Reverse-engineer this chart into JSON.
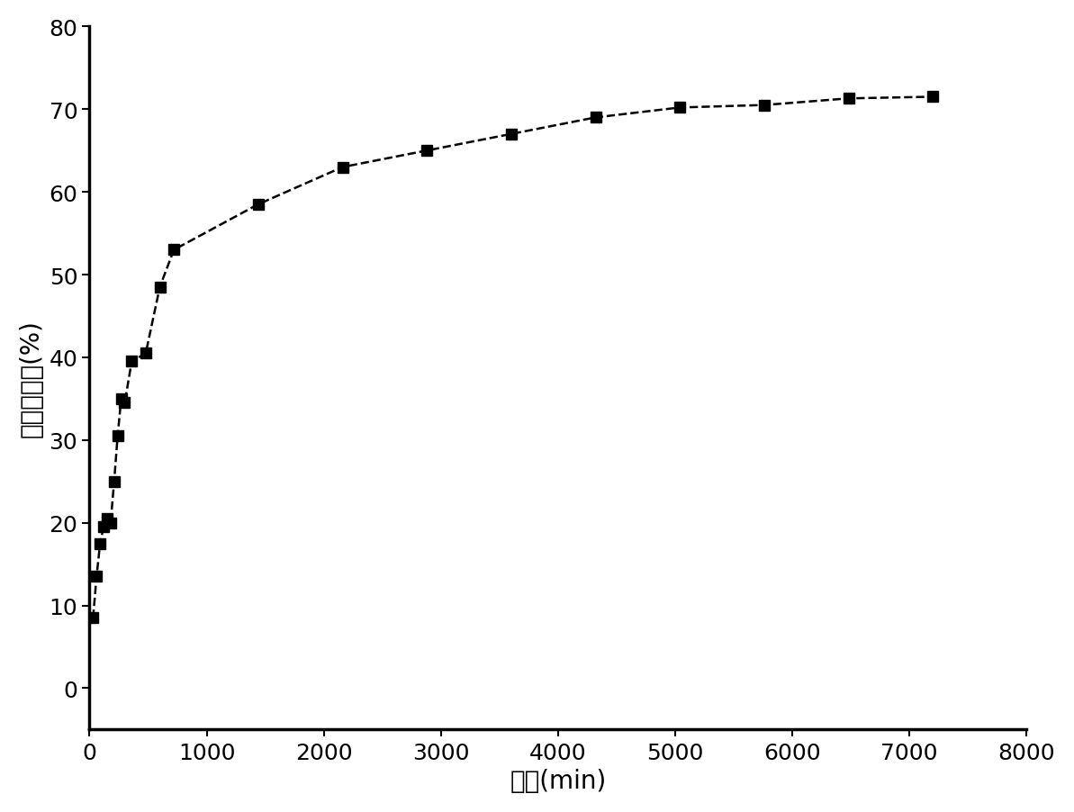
{
  "x": [
    30,
    60,
    90,
    120,
    150,
    180,
    210,
    240,
    270,
    300,
    360,
    480,
    600,
    720,
    1440,
    2160,
    2880,
    3600,
    4320,
    5040,
    5760,
    6480,
    7200
  ],
  "y": [
    8.5,
    13.5,
    17.5,
    19.5,
    20.5,
    20.0,
    25.0,
    30.5,
    35.0,
    34.5,
    39.5,
    40.5,
    48.5,
    53.0,
    58.5,
    63.0,
    65.0,
    67.0,
    69.0,
    70.2,
    70.5,
    71.3,
    71.5
  ],
  "xlim": [
    0,
    8000
  ],
  "ylim": [
    -5,
    80
  ],
  "xticks": [
    0,
    1000,
    2000,
    3000,
    4000,
    5000,
    6000,
    7000,
    8000
  ],
  "yticks": [
    0,
    10,
    20,
    30,
    40,
    50,
    60,
    70,
    80
  ],
  "xlabel": "时间(min)",
  "ylabel": "药物释放量(%)",
  "line_color": "#000000",
  "marker": "s",
  "marker_color": "#000000",
  "marker_size": 9,
  "line_style": "--",
  "line_width": 1.8,
  "xlabel_fontsize": 20,
  "ylabel_fontsize": 20,
  "tick_fontsize": 18,
  "figsize": [
    11.93,
    9.03
  ],
  "dpi": 100,
  "spine_linewidth": 2.5
}
